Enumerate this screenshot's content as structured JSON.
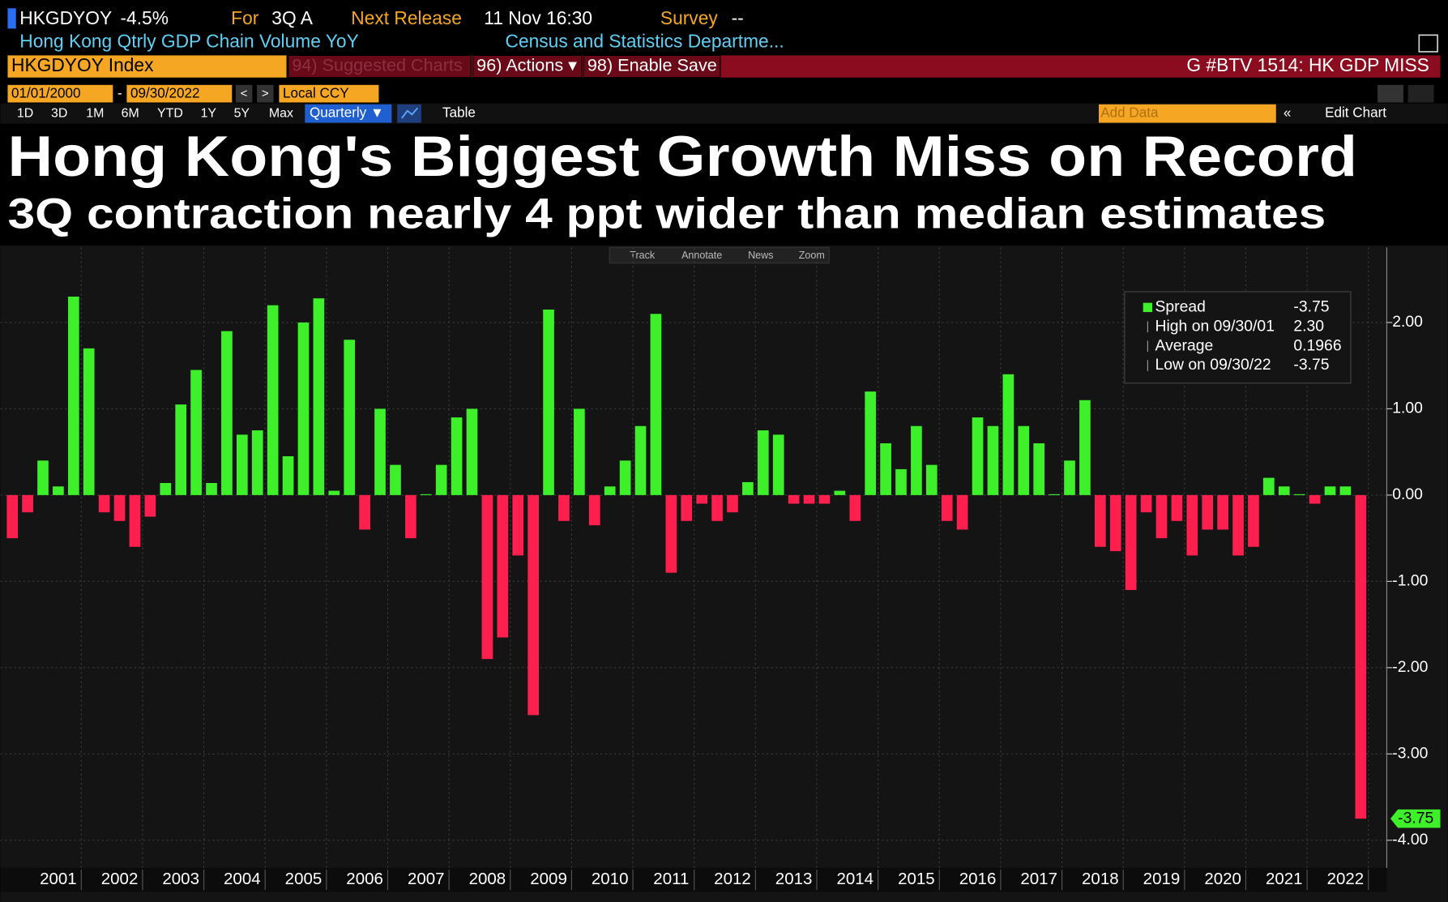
{
  "header": {
    "ticker": "HKGDYOY",
    "change": "-4.5%",
    "for_label": "For",
    "period": "3Q A",
    "next_release_label": "Next Release",
    "next_release": "11 Nov 16:30",
    "survey_label": "Survey",
    "survey": "--",
    "description": "Hong Kong Qtrly GDP Chain Volume YoY",
    "source": "Census and Statistics Departme..."
  },
  "menu": {
    "security": "HKGDYOY Index",
    "items": [
      "94) Suggested Charts",
      "96) Actions ▾",
      "98) Enable Save"
    ],
    "story": "G #BTV 1514: HK GDP MISS"
  },
  "range": {
    "start": "01/01/2000",
    "separator": "-",
    "end": "09/30/2022",
    "currency": "Local CCY"
  },
  "toolbar": {
    "periods": [
      "1D",
      "3D",
      "1M",
      "6M",
      "YTD",
      "1Y",
      "5Y",
      "Max"
    ],
    "frequency": "Quarterly ▼",
    "table": "Table",
    "add_data": "Add Data",
    "edit_chart": "Edit Chart"
  },
  "chart_tools": [
    "Track",
    "Annotate",
    "News",
    "Zoom"
  ],
  "chart_data": {
    "type": "bar",
    "title": "Hong Kong's Biggest Growth Miss on Record",
    "subtitle": "3Q contraction nearly 4 ppt wider than median estimates",
    "year_labels": [
      "2001",
      "2002",
      "2003",
      "2004",
      "2005",
      "2006",
      "2007",
      "2008",
      "2009",
      "2010",
      "2011",
      "2012",
      "2013",
      "2014",
      "2015",
      "2016",
      "2017",
      "2018",
      "2019",
      "2020",
      "2021",
      "2022"
    ],
    "values": [
      -0.5,
      -0.2,
      0.4,
      0.1,
      2.3,
      1.7,
      -0.2,
      -0.3,
      -0.6,
      -0.25,
      0.14,
      1.05,
      1.45,
      0.14,
      1.9,
      0.7,
      0.75,
      2.2,
      0.45,
      2.0,
      2.28,
      0.05,
      1.8,
      -0.4,
      1.0,
      0.35,
      -0.5,
      0.01,
      0.35,
      0.9,
      1.0,
      -1.9,
      -1.65,
      -0.7,
      -2.55,
      2.15,
      -0.3,
      1.0,
      -0.35,
      0.1,
      0.4,
      0.8,
      2.1,
      -0.9,
      -0.3,
      -0.1,
      -0.3,
      -0.2,
      0.15,
      0.75,
      0.7,
      -0.1,
      -0.1,
      -0.1,
      0.05,
      -0.3,
      1.2,
      0.6,
      0.3,
      0.8,
      0.35,
      -0.3,
      -0.4,
      0.9,
      0.8,
      1.4,
      0.8,
      0.6,
      0.01,
      0.4,
      1.1,
      -0.6,
      -0.65,
      -1.1,
      -0.2,
      -0.5,
      -0.3,
      -0.7,
      -0.4,
      -0.4,
      -0.7,
      -0.6,
      0.2,
      0.1,
      0.01,
      -0.1,
      0.1,
      0.1,
      -3.75
    ],
    "colors": {
      "positive": "#3df02a",
      "negative": "#ff1f4f"
    },
    "ylim": [
      -4.32,
      2.87
    ],
    "yticks": [
      {
        "value": 2,
        "label": "2.00"
      },
      {
        "value": 1,
        "label": "1.00"
      },
      {
        "value": 0,
        "label": "0.00"
      },
      {
        "value": -1,
        "label": "-1.00"
      },
      {
        "value": -2,
        "label": "-2.00"
      },
      {
        "value": -3,
        "label": "-3.00"
      },
      {
        "value": -4,
        "label": "-4.00"
      }
    ],
    "grid": true,
    "legend": {
      "position": "upper right",
      "entries": [
        {
          "label": "Spread",
          "value": "-3.75"
        },
        {
          "label": "High on 09/30/01",
          "value": "2.30"
        },
        {
          "label": "Average",
          "value": "0.1966"
        },
        {
          "label": "Low on 09/30/22",
          "value": "-3.75"
        }
      ]
    },
    "last_value_label": "-3.75"
  }
}
